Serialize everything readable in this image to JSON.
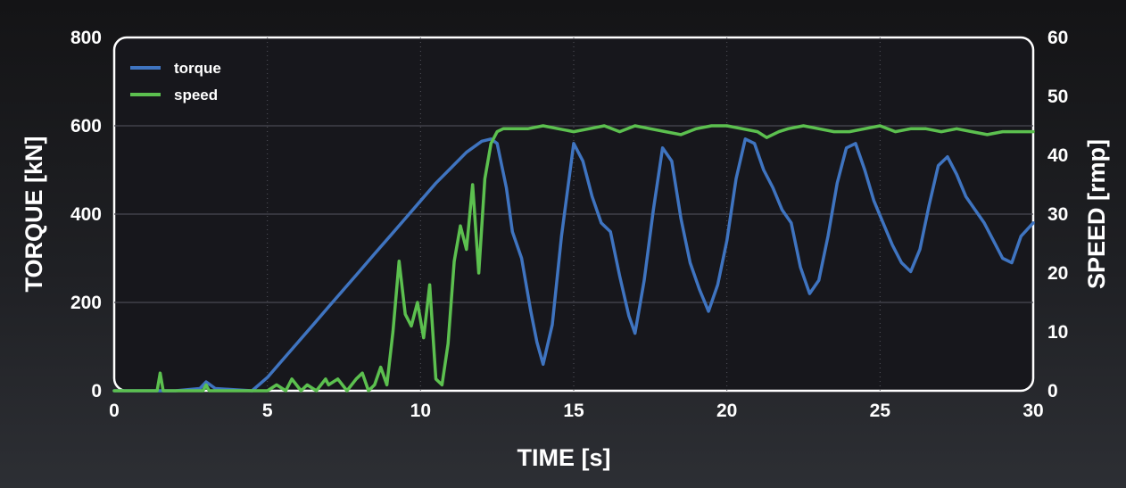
{
  "chart_data": {
    "type": "line",
    "title": "",
    "xlabel": "TIME [s]",
    "ylabel": "TORQUE [kN]",
    "y2label": "SPEED [rmp]",
    "xlim": [
      0,
      30
    ],
    "ylim": [
      0,
      800
    ],
    "y2lim": [
      0,
      60
    ],
    "xticks": [
      "0",
      "5",
      "10",
      "15",
      "20",
      "25",
      "30"
    ],
    "yticks": [
      "0",
      "200",
      "400",
      "600",
      "800"
    ],
    "y2ticks": [
      "0",
      "10",
      "20",
      "30",
      "40",
      "50",
      "60"
    ],
    "grid": "horizontal solid, vertical dotted",
    "legend": "top-left",
    "colors": {
      "torque": "#3f74c0",
      "speed": "#5cc04f",
      "plot_background": "#17171c",
      "frame": "#ffffff"
    },
    "series": [
      {
        "name": "torque",
        "axis": "left",
        "x": [
          0,
          1,
          2,
          2.8,
          3.0,
          3.3,
          4.0,
          4.5,
          5.0,
          5.5,
          6.0,
          6.5,
          7.0,
          7.5,
          8.0,
          8.5,
          9.0,
          9.5,
          10.0,
          10.5,
          11.0,
          11.5,
          12.0,
          12.3,
          12.5,
          12.8,
          13.0,
          13.3,
          13.6,
          13.8,
          14.0,
          14.3,
          14.6,
          15.0,
          15.3,
          15.6,
          15.9,
          16.2,
          16.5,
          16.8,
          17.0,
          17.3,
          17.6,
          17.9,
          18.2,
          18.5,
          18.8,
          19.1,
          19.4,
          19.7,
          20.0,
          20.3,
          20.6,
          20.9,
          21.2,
          21.5,
          21.8,
          22.1,
          22.4,
          22.7,
          23.0,
          23.3,
          23.6,
          23.9,
          24.2,
          24.5,
          24.8,
          25.1,
          25.4,
          25.7,
          26.0,
          26.3,
          26.6,
          26.9,
          27.2,
          27.5,
          27.8,
          28.1,
          28.4,
          28.7,
          29.0,
          29.3,
          29.6,
          30.0
        ],
        "values": [
          0,
          0,
          0,
          5,
          20,
          5,
          2,
          0,
          30,
          70,
          110,
          150,
          190,
          230,
          270,
          310,
          350,
          390,
          430,
          470,
          505,
          540,
          565,
          570,
          560,
          460,
          360,
          300,
          180,
          110,
          60,
          150,
          350,
          560,
          520,
          440,
          380,
          360,
          260,
          170,
          130,
          250,
          410,
          550,
          520,
          390,
          290,
          230,
          180,
          240,
          340,
          480,
          570,
          560,
          500,
          460,
          410,
          380,
          280,
          220,
          250,
          350,
          470,
          550,
          560,
          500,
          430,
          380,
          330,
          290,
          270,
          320,
          420,
          510,
          530,
          490,
          440,
          410,
          380,
          340,
          300,
          290,
          350,
          380
        ]
      },
      {
        "name": "speed",
        "axis": "right",
        "x": [
          0,
          1.4,
          1.5,
          1.6,
          2.0,
          2.9,
          3.0,
          3.1,
          4.5,
          5.0,
          5.3,
          5.6,
          5.8,
          6.1,
          6.3,
          6.6,
          6.9,
          7.0,
          7.3,
          7.6,
          7.9,
          8.1,
          8.3,
          8.5,
          8.7,
          8.9,
          9.1,
          9.3,
          9.5,
          9.7,
          9.9,
          10.1,
          10.3,
          10.5,
          10.7,
          10.9,
          11.1,
          11.3,
          11.5,
          11.7,
          11.9,
          12.1,
          12.3,
          12.5,
          12.7,
          13.0,
          13.5,
          14.0,
          14.5,
          15.0,
          15.5,
          16.0,
          16.5,
          17.0,
          17.5,
          18.0,
          18.5,
          19.0,
          19.5,
          20.0,
          20.5,
          21.0,
          21.3,
          21.7,
          22.0,
          22.5,
          23.0,
          23.5,
          24.0,
          24.5,
          25.0,
          25.5,
          26.0,
          26.5,
          27.0,
          27.5,
          28.0,
          28.5,
          29.0,
          29.5,
          30.0
        ],
        "values": [
          0,
          0,
          3,
          0,
          0,
          0,
          1,
          0,
          0,
          0,
          1,
          0,
          2,
          0,
          1,
          0,
          2,
          1,
          2,
          0,
          2,
          3,
          0,
          1,
          4,
          1,
          10,
          22,
          13,
          11,
          15,
          9,
          18,
          2,
          1,
          8,
          22,
          28,
          24,
          35,
          20,
          36,
          42,
          44,
          44.5,
          44.5,
          44.5,
          45,
          44.5,
          44,
          44.5,
          45,
          44,
          45,
          44.5,
          44,
          43.5,
          44.5,
          45,
          45,
          44.5,
          44,
          43,
          44,
          44.5,
          45,
          44.5,
          44,
          44,
          44.5,
          45,
          44,
          44.5,
          44.5,
          44,
          44.5,
          44,
          43.5,
          44,
          44,
          44
        ]
      }
    ]
  }
}
